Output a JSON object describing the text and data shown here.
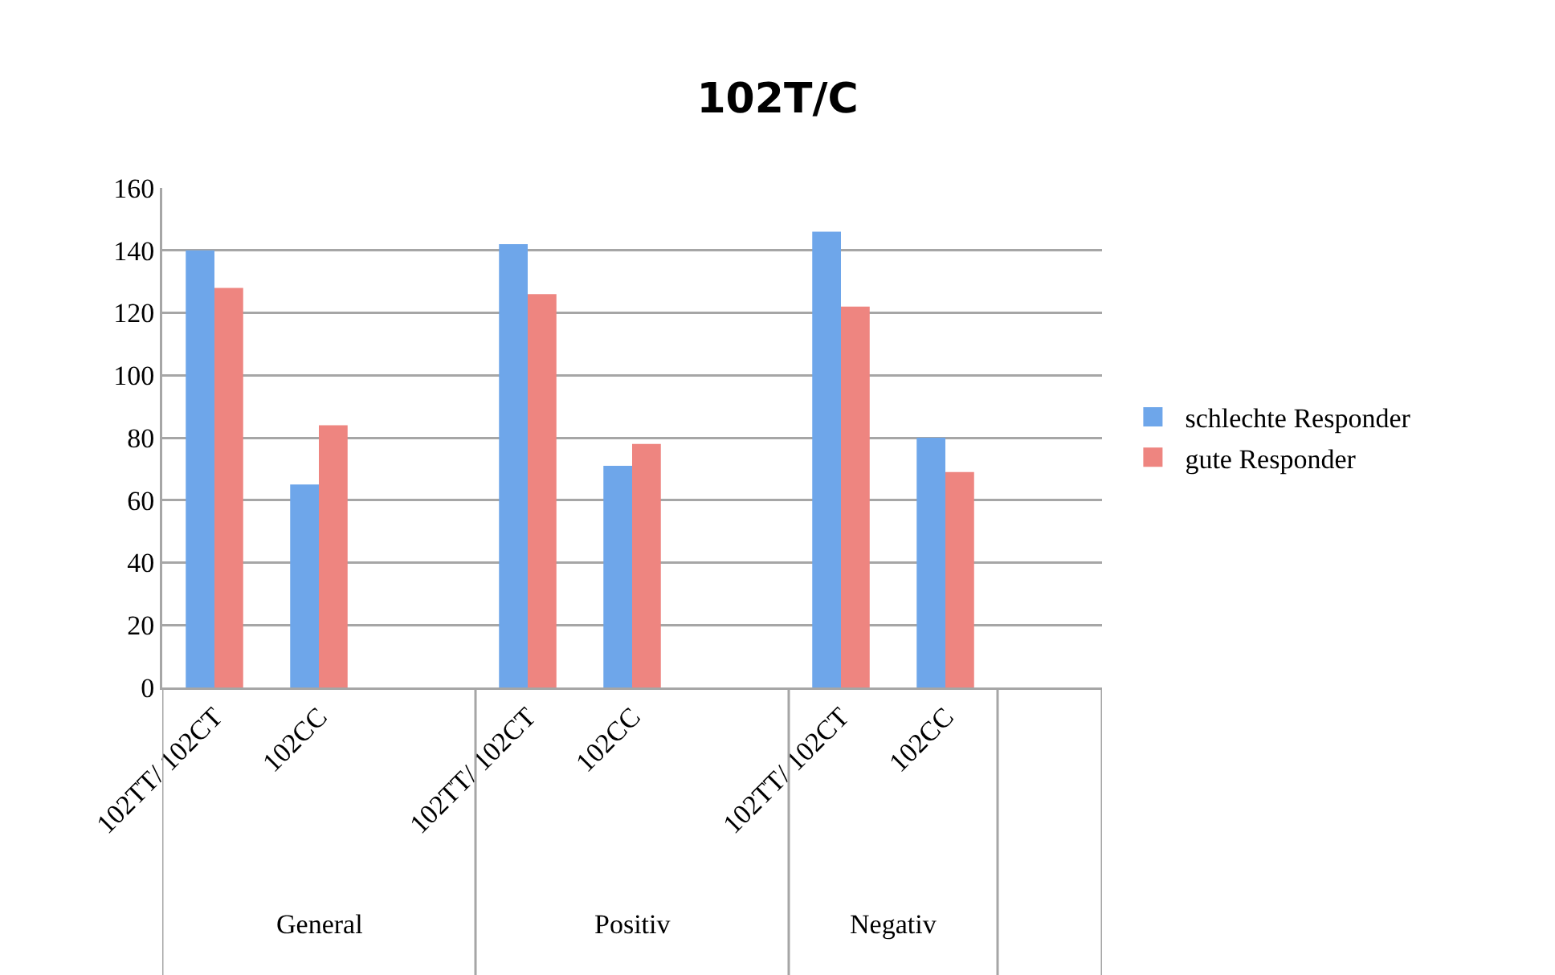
{
  "chart_data": {
    "type": "bar",
    "title": "102T/C",
    "categories": [
      "102TT/ 102CT",
      "102CC",
      null,
      "102TT/ 102CT",
      "102CC",
      null,
      "102TT/ 102CT",
      "102CC",
      null
    ],
    "series": [
      {
        "name": "schlechte Responder",
        "color": "#6ea6ea",
        "values": [
          140,
          65,
          null,
          142,
          71,
          null,
          146,
          80,
          null
        ]
      },
      {
        "name": "gute Responder",
        "color": "#ee8580",
        "values": [
          128,
          84,
          null,
          126,
          78,
          null,
          122,
          69,
          null
        ]
      }
    ],
    "annotations": [
      "General",
      "Positiv",
      "Negativ"
    ],
    "ylim": [
      0,
      160
    ],
    "yticks": [
      0,
      20,
      40,
      60,
      80,
      100,
      120,
      140,
      160
    ],
    "grid": "y",
    "legend": "right"
  }
}
